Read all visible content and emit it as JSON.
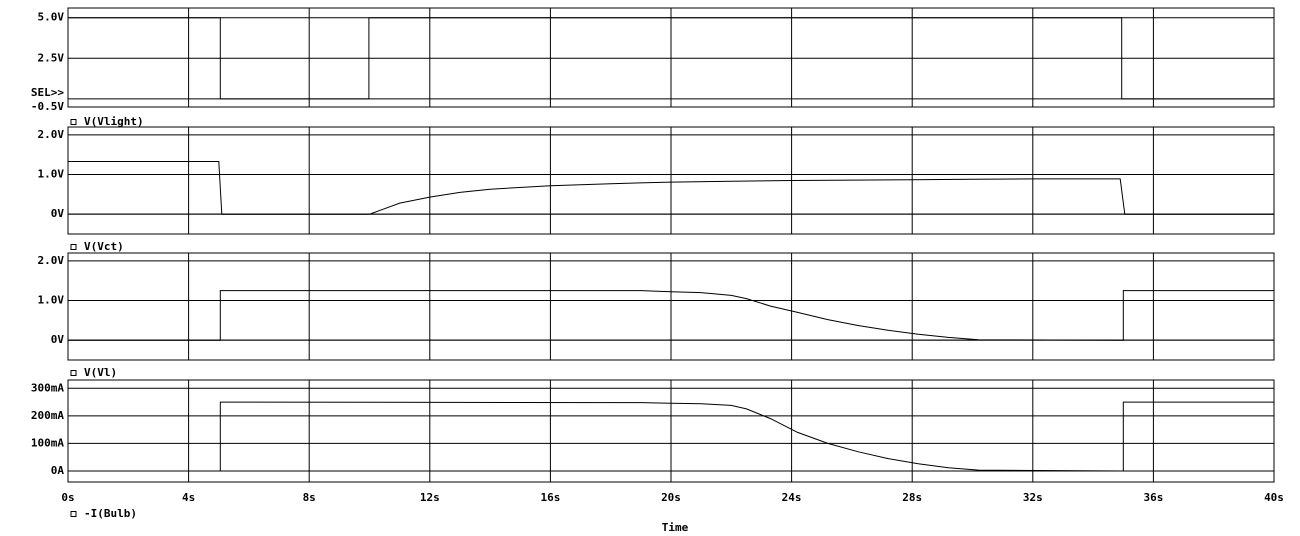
{
  "chart_data": [
    {
      "type": "line",
      "annotation": "SEL>>",
      "xlim": [
        0,
        40
      ],
      "ylim": [
        -0.5,
        5.6
      ],
      "yticks": [
        {
          "value": 5,
          "label": "5.0V"
        },
        {
          "value": 2.5,
          "label": "2.5V"
        },
        {
          "value": -0.5,
          "label": "-0.5V"
        }
      ],
      "x": [
        0,
        5.05,
        5.05,
        9.98,
        9.98,
        34.95,
        34.95,
        40
      ],
      "series": [
        {
          "name": "V(Vlight)",
          "color": "#000000",
          "values": [
            5,
            5,
            0,
            0,
            5,
            5,
            0,
            0
          ]
        }
      ]
    },
    {
      "type": "line",
      "xlim": [
        0,
        40
      ],
      "ylim": [
        -0.5,
        2.2
      ],
      "yticks": [
        {
          "value": 2,
          "label": "2.0V"
        },
        {
          "value": 1,
          "label": "1.0V"
        },
        {
          "value": 0,
          "label": "0V"
        }
      ],
      "x": [
        0,
        5.0,
        5.1,
        10,
        11,
        12,
        13,
        14,
        16,
        18,
        20,
        22,
        24,
        26,
        28,
        30,
        32,
        34.9,
        35.05,
        40
      ],
      "series": [
        {
          "name": "V(Vct)",
          "color": "#000000",
          "values": [
            1.33,
            1.33,
            0,
            0,
            0.28,
            0.43,
            0.55,
            0.63,
            0.72,
            0.77,
            0.81,
            0.83,
            0.85,
            0.86,
            0.87,
            0.88,
            0.89,
            0.89,
            0,
            0
          ]
        }
      ]
    },
    {
      "type": "line",
      "xlim": [
        0,
        40
      ],
      "ylim": [
        -0.5,
        2.2
      ],
      "yticks": [
        {
          "value": 2,
          "label": "2.0V"
        },
        {
          "value": 1,
          "label": "1.0V"
        },
        {
          "value": 0,
          "label": "0V"
        }
      ],
      "x": [
        0,
        5.05,
        5.05,
        19,
        20,
        21,
        22,
        22.5,
        23.3,
        24.2,
        25.2,
        26.2,
        27.2,
        28.2,
        29.2,
        30.2,
        35,
        35,
        40
      ],
      "series": [
        {
          "name": "V(Vl)",
          "color": "#000000",
          "values": [
            0,
            0,
            1.25,
            1.25,
            1.22,
            1.2,
            1.13,
            1.05,
            0.86,
            0.7,
            0.52,
            0.37,
            0.25,
            0.15,
            0.07,
            0.01,
            0,
            1.25,
            1.25
          ]
        }
      ]
    },
    {
      "type": "line",
      "xlabel": "Time",
      "xlim": [
        0,
        40
      ],
      "ylim": [
        -40,
        330
      ],
      "xticks": [
        {
          "value": 0,
          "label": "0s"
        },
        {
          "value": 4,
          "label": "4s"
        },
        {
          "value": 8,
          "label": "8s"
        },
        {
          "value": 12,
          "label": "12s"
        },
        {
          "value": 16,
          "label": "16s"
        },
        {
          "value": 20,
          "label": "20s"
        },
        {
          "value": 24,
          "label": "24s"
        },
        {
          "value": 28,
          "label": "28s"
        },
        {
          "value": 32,
          "label": "32s"
        },
        {
          "value": 36,
          "label": "36s"
        },
        {
          "value": 40,
          "label": "40s"
        }
      ],
      "yticks": [
        {
          "value": 300,
          "label": "300mA"
        },
        {
          "value": 200,
          "label": "200mA"
        },
        {
          "value": 100,
          "label": "100mA"
        },
        {
          "value": 0,
          "label": "0A"
        }
      ],
      "x": [
        0,
        5.05,
        5.05,
        19,
        20,
        21,
        22,
        22.5,
        23.3,
        24.2,
        25.2,
        26.2,
        27.2,
        28.2,
        29.2,
        30.2,
        35,
        35,
        40
      ],
      "series": [
        {
          "name": "-I(Bulb)",
          "color": "#000000",
          "values": [
            0,
            0,
            250,
            248,
            246,
            244,
            238,
            225,
            190,
            140,
            100,
            70,
            45,
            26,
            12,
            3,
            0,
            250,
            250
          ]
        }
      ]
    }
  ]
}
